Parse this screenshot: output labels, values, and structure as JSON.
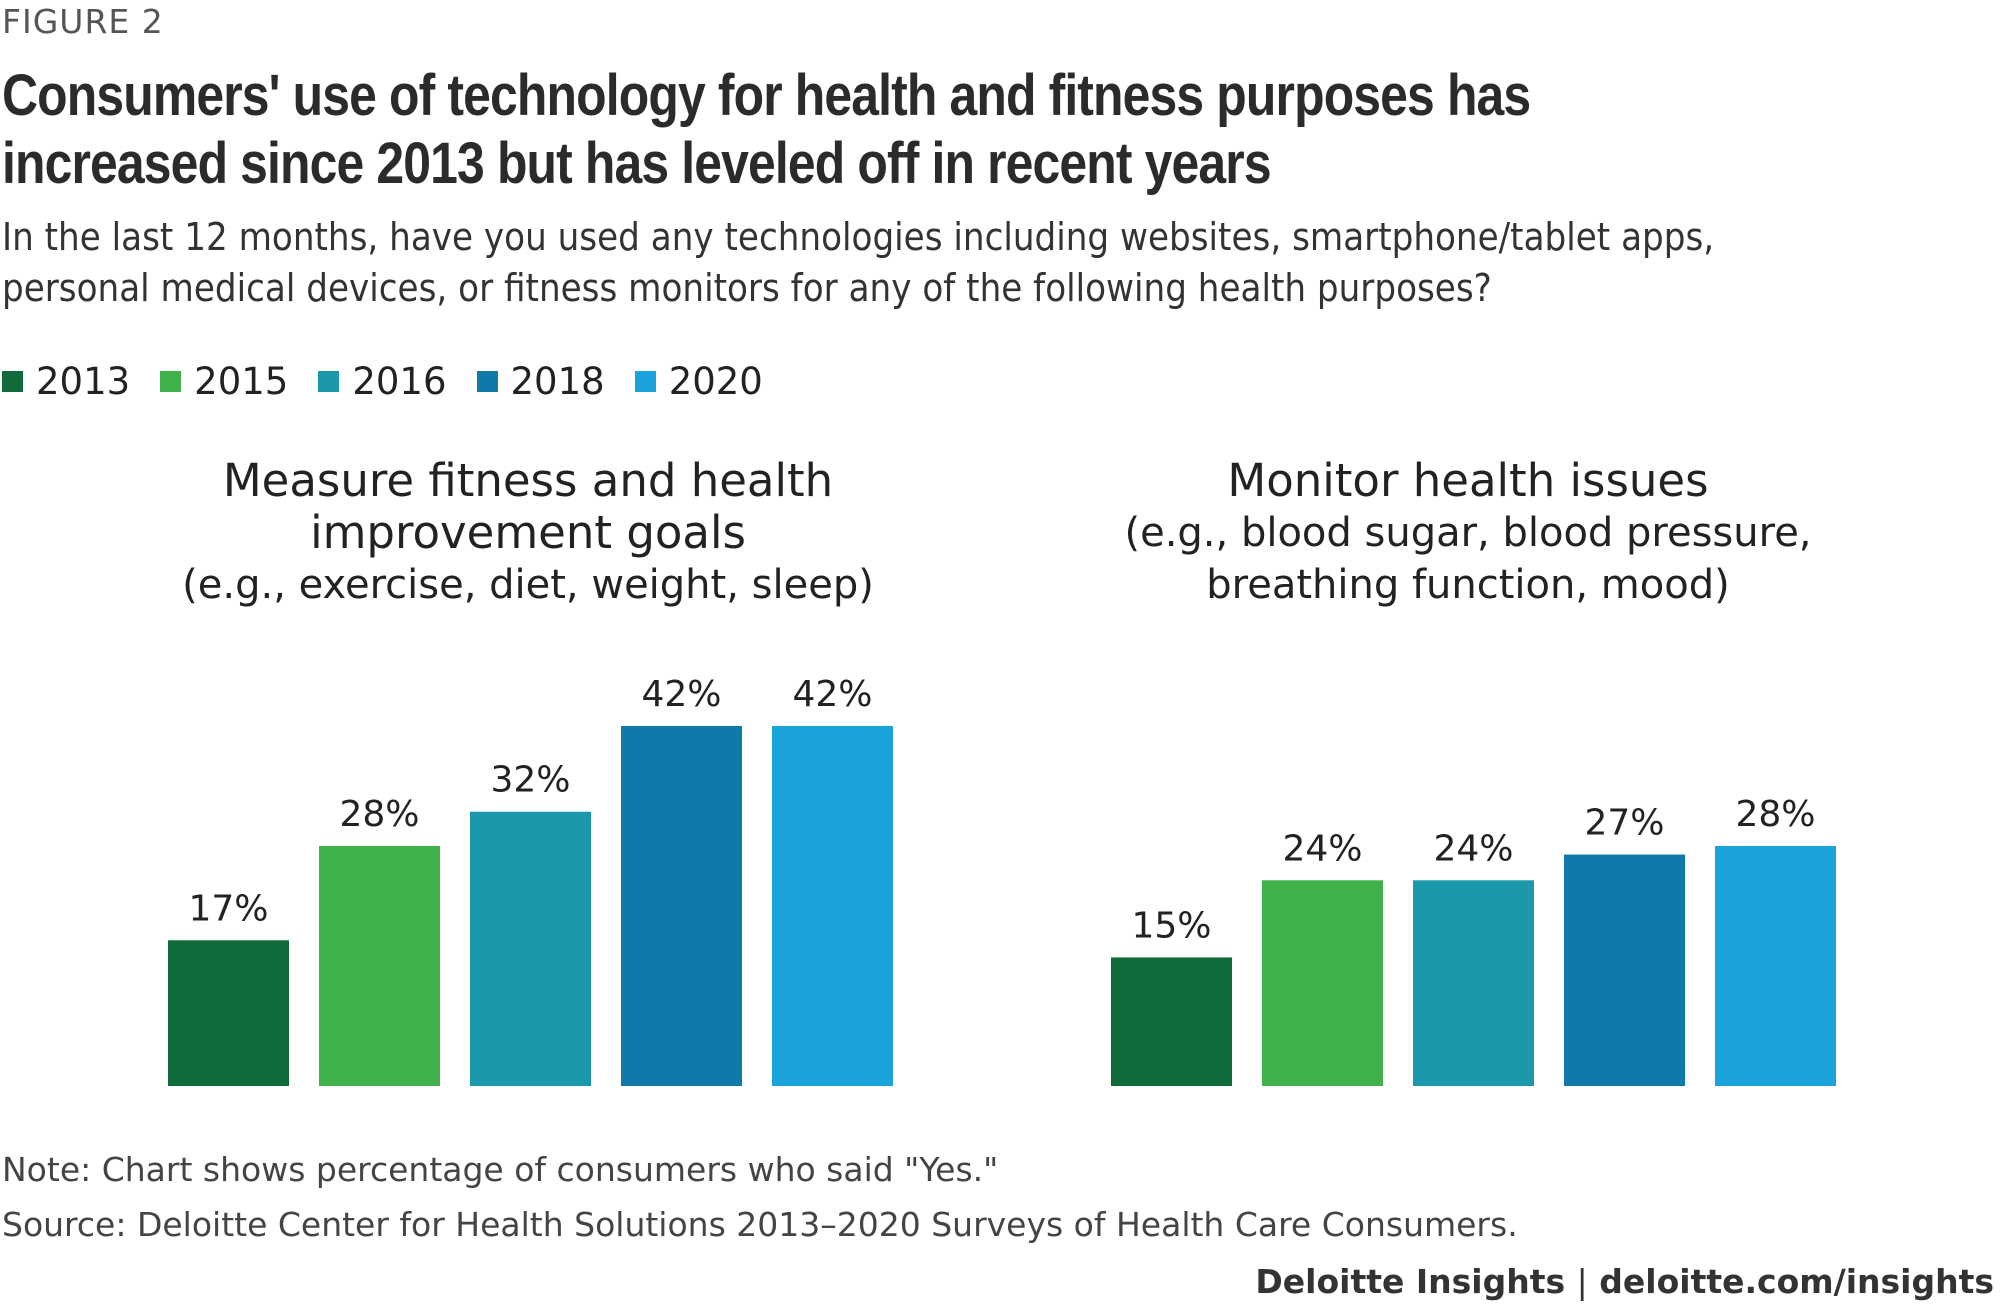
{
  "figure_label": "FIGURE 2",
  "title": "Consumers' use of technology for health and fitness purposes has increased since 2013 but has leveled off in recent years",
  "subtitle": "In the last 12 months, have you used any technologies including websites, smartphone/tablet apps, personal medical devices, or fitness monitors for any of the following health purposes?",
  "legend": [
    {
      "label": "2013",
      "color": "#0f6b3a"
    },
    {
      "label": "2015",
      "color": "#40b04a"
    },
    {
      "label": "2016",
      "color": "#1b98aa"
    },
    {
      "label": "2018",
      "color": "#0f79aa"
    },
    {
      "label": "2020",
      "color": "#1aa3da"
    }
  ],
  "chart_data": [
    {
      "type": "bar",
      "title_lines": [
        "Measure fitness and health",
        "improvement goals"
      ],
      "subtitle_lines": [
        "(e.g., exercise, diet, weight, sleep)"
      ],
      "categories": [
        "2013",
        "2015",
        "2016",
        "2018",
        "2020"
      ],
      "values": [
        17,
        28,
        32,
        42,
        42
      ],
      "labels": [
        "17%",
        "28%",
        "32%",
        "42%",
        "42%"
      ],
      "ylim": [
        0,
        42
      ]
    },
    {
      "type": "bar",
      "title_lines": [
        "Monitor health issues"
      ],
      "subtitle_lines": [
        "(e.g., blood sugar, blood pressure,",
        "breathing function, mood)"
      ],
      "categories": [
        "2013",
        "2015",
        "2016",
        "2018",
        "2020"
      ],
      "values": [
        15,
        24,
        24,
        27,
        28
      ],
      "labels": [
        "15%",
        "24%",
        "24%",
        "27%",
        "28%"
      ],
      "ylim": [
        0,
        42
      ]
    }
  ],
  "note": "Note: Chart shows percentage of consumers who said \"Yes.\"",
  "source": "Source: Deloitte Center for Health Solutions 2013–2020 Surveys of Health Care Consumers.",
  "footer": {
    "brand": "Deloitte Insights",
    "separator": "|",
    "url": "deloitte.com/insights"
  }
}
